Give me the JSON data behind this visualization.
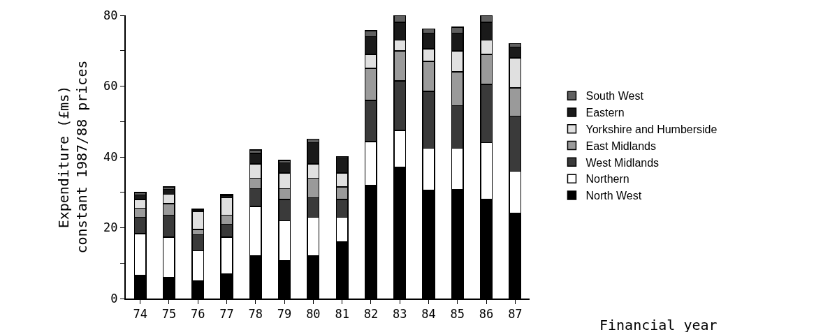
{
  "chart_data": {
    "type": "bar",
    "stacked": true,
    "xlabel": "Financial year",
    "ylabel": "Expenditure (£ms)\nconstant 1987/88 prices",
    "categories": [
      "74",
      "75",
      "76",
      "77",
      "78",
      "79",
      "80",
      "81",
      "82",
      "83",
      "84",
      "85",
      "86",
      "87"
    ],
    "ylim": [
      0,
      80
    ],
    "yticks": [
      0,
      {
        "value": 10,
        "label": null
      },
      20,
      {
        "value": 30,
        "label": null
      },
      40,
      {
        "value": 50,
        "label": null
      },
      60,
      {
        "value": 70,
        "label": null
      },
      80
    ],
    "legend": "right",
    "series": [
      {
        "name": "North West",
        "color": "#000000",
        "values": [
          6.5,
          6,
          5,
          7,
          12,
          10.7,
          12,
          16,
          32,
          37,
          30.5,
          30.7,
          28,
          24
        ]
      },
      {
        "name": "Northern",
        "color": "#ffffff",
        "values": [
          11.8,
          11.3,
          8.5,
          10.3,
          14,
          11.3,
          11,
          7,
          12.3,
          10.5,
          12,
          11.8,
          16,
          12
        ]
      },
      {
        "name": "West Midlands",
        "color": "#3a3a3a",
        "values": [
          4.7,
          6.2,
          4.5,
          3.7,
          5,
          6,
          5.5,
          5,
          11.7,
          14,
          16,
          12,
          16.5,
          15.5
        ]
      },
      {
        "name": "East Midlands",
        "color": "#9a9a9a",
        "values": [
          2.5,
          3.3,
          1.5,
          2.5,
          3,
          3,
          5.5,
          3.5,
          9,
          8.5,
          8.5,
          9.5,
          8.5,
          8
        ]
      },
      {
        "name": "Yorkshire and Humberside",
        "color": "#e0e0e0",
        "values": [
          2.5,
          2.7,
          5,
          5,
          4,
          4.5,
          4,
          4,
          4,
          3,
          3.5,
          6,
          4,
          8.5
        ]
      },
      {
        "name": "Eastern",
        "color": "#1a1a1a",
        "values": [
          1.3,
          1.3,
          0.5,
          0.7,
          3,
          2.8,
          6,
          4,
          5,
          5,
          4.5,
          5,
          5,
          3
        ]
      },
      {
        "name": "South West",
        "color": "#606060",
        "values": [
          0.7,
          0.7,
          0.3,
          0.3,
          1,
          0.7,
          1,
          0.5,
          1.7,
          2,
          1.2,
          1.7,
          2,
          1
        ]
      }
    ]
  }
}
